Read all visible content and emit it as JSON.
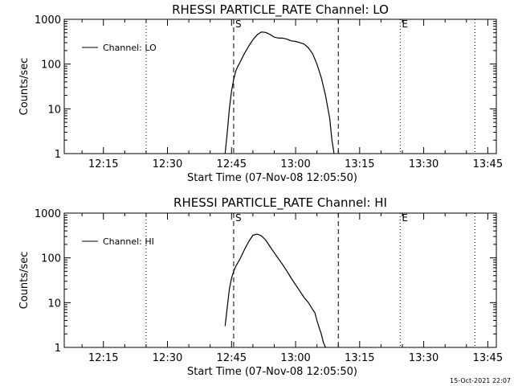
{
  "footer": {
    "timestamp": "15-Oct-2021 22:07"
  },
  "chart_data": [
    {
      "type": "line",
      "title": "RHESSI PARTICLE_RATE Channel: LO",
      "xlabel": "Start Time (07-Nov-08 12:05:50)",
      "ylabel": "Counts/sec",
      "yscale": "log",
      "ylim": [
        1,
        1000
      ],
      "yticks": [
        1,
        10,
        100,
        1000
      ],
      "ytick_labels": [
        "1",
        "10",
        "100",
        "1000"
      ],
      "xlim": [
        "12:05:50",
        "13:47:00"
      ],
      "xticks": [
        "12:15",
        "12:30",
        "12:45",
        "13:00",
        "13:15",
        "13:30",
        "13:45"
      ],
      "legend": {
        "label": "Channel: LO",
        "position": "top-left"
      },
      "vertical_lines": [
        {
          "x": "12:25:00",
          "style": "dotted"
        },
        {
          "x": "12:45:30",
          "style": "dashed",
          "label": "S"
        },
        {
          "x": "13:10:00",
          "style": "dashed"
        },
        {
          "x": "13:24:30",
          "style": "dotted",
          "label": "E"
        },
        {
          "x": "13:42:00",
          "style": "dotted"
        }
      ],
      "series": [
        {
          "name": "Channel: LO",
          "x": [
            "12:43:30",
            "12:44:00",
            "12:44:30",
            "12:45:00",
            "12:45:30",
            "12:46:00",
            "12:46:30",
            "12:47:00",
            "12:48:00",
            "12:49:00",
            "12:50:00",
            "12:51:00",
            "12:52:00",
            "12:53:00",
            "12:54:00",
            "12:55:00",
            "12:56:00",
            "12:57:00",
            "12:58:00",
            "12:59:00",
            "13:00:00",
            "13:01:00",
            "13:02:00",
            "13:03:00",
            "13:04:00",
            "13:05:00",
            "13:06:00",
            "13:07:00",
            "13:08:00",
            "13:08:30",
            "13:09:00"
          ],
          "y": [
            1,
            3,
            10,
            25,
            45,
            70,
            90,
            110,
            170,
            250,
            350,
            450,
            520,
            510,
            460,
            400,
            380,
            380,
            360,
            330,
            320,
            300,
            280,
            230,
            170,
            100,
            50,
            20,
            6,
            2,
            1
          ]
        }
      ]
    },
    {
      "type": "line",
      "title": "RHESSI PARTICLE_RATE Channel: HI",
      "xlabel": "Start Time (07-Nov-08 12:05:50)",
      "ylabel": "Counts/sec",
      "yscale": "log",
      "ylim": [
        1,
        1000
      ],
      "yticks": [
        1,
        10,
        100,
        1000
      ],
      "ytick_labels": [
        "1",
        "10",
        "100",
        "1000"
      ],
      "xlim": [
        "12:05:50",
        "13:47:00"
      ],
      "xticks": [
        "12:15",
        "12:30",
        "12:45",
        "13:00",
        "13:15",
        "13:30",
        "13:45"
      ],
      "legend": {
        "label": "Channel: HI",
        "position": "top-left"
      },
      "vertical_lines": [
        {
          "x": "12:25:00",
          "style": "dotted"
        },
        {
          "x": "12:45:30",
          "style": "dashed",
          "label": "S"
        },
        {
          "x": "13:10:00",
          "style": "dashed"
        },
        {
          "x": "13:24:30",
          "style": "dotted",
          "label": "E"
        },
        {
          "x": "13:42:00",
          "style": "dotted"
        }
      ],
      "series": [
        {
          "name": "Channel: HI",
          "x": [
            "12:43:30",
            "12:44:00",
            "12:44:30",
            "12:45:00",
            "12:45:30",
            "12:46:00",
            "12:47:00",
            "12:48:00",
            "12:49:00",
            "12:50:00",
            "12:51:00",
            "12:52:00",
            "12:53:00",
            "12:54:00",
            "12:55:00",
            "12:56:00",
            "12:57:00",
            "12:58:00",
            "12:59:00",
            "13:00:00",
            "13:01:00",
            "13:02:00",
            "13:03:00",
            "13:04:00",
            "13:04:30",
            "13:05:00",
            "13:05:30",
            "13:06:00",
            "13:06:30",
            "13:07:00"
          ],
          "y": [
            3,
            8,
            20,
            35,
            50,
            65,
            95,
            150,
            230,
            320,
            340,
            310,
            250,
            180,
            130,
            95,
            70,
            50,
            35,
            25,
            18,
            13,
            10,
            7,
            6,
            4,
            2.8,
            2,
            1.3,
            1
          ]
        }
      ]
    }
  ]
}
